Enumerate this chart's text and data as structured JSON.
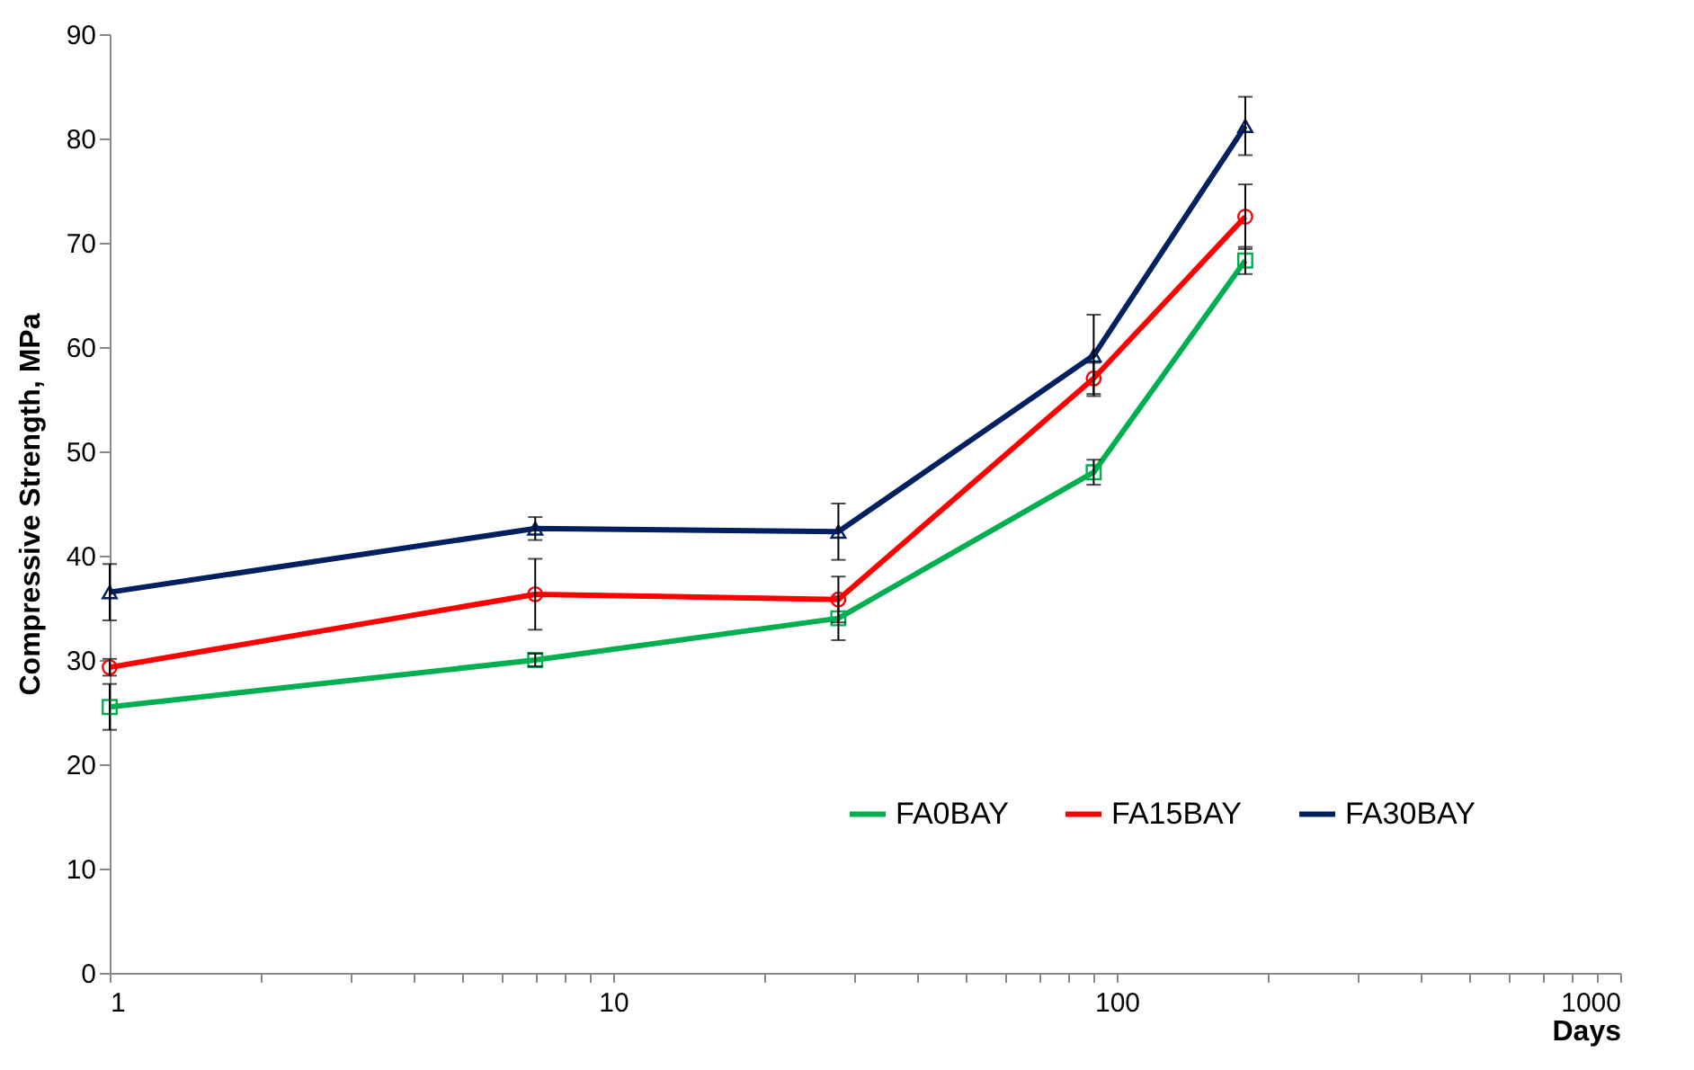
{
  "chart_data": {
    "type": "line",
    "xlabel": "Days",
    "ylabel": "Compressive Strength, MPa",
    "x": [
      1,
      7,
      28,
      90,
      180
    ],
    "series": [
      {
        "name": "FA0BAY",
        "color": "#00b050",
        "marker": "square",
        "values": [
          25.5,
          30,
          34,
          48,
          68.3
        ],
        "errors": [
          2.2,
          0.6,
          2.1,
          1.2,
          1.3
        ]
      },
      {
        "name": "FA15BAY",
        "color": "#ff0000",
        "marker": "circle",
        "values": [
          29.3,
          36.3,
          35.8,
          57,
          72.5
        ],
        "errors": [
          0.8,
          3.4,
          2.2,
          1.5,
          3.1
        ]
      },
      {
        "name": "FA30BAY",
        "color": "#002060",
        "marker": "triangle",
        "values": [
          36.5,
          42.6,
          42.3,
          59.2,
          81.2
        ],
        "errors": [
          2.7,
          1.1,
          2.7,
          3.9,
          2.8
        ]
      }
    ],
    "log": "x",
    "xlim": [
      1,
      1000
    ],
    "xticks": [
      1,
      {
        "value": 2,
        "label": null
      },
      {
        "value": 3,
        "label": null
      },
      {
        "value": 4,
        "label": null
      },
      {
        "value": 5,
        "label": null
      },
      {
        "value": 6,
        "label": null
      },
      {
        "value": 7,
        "label": null
      },
      {
        "value": 8,
        "label": null
      },
      {
        "value": 9,
        "label": null
      },
      10,
      {
        "value": 20,
        "label": null
      },
      {
        "value": 30,
        "label": null
      },
      {
        "value": 40,
        "label": null
      },
      {
        "value": 50,
        "label": null
      },
      {
        "value": 60,
        "label": null
      },
      {
        "value": 70,
        "label": null
      },
      {
        "value": 80,
        "label": null
      },
      {
        "value": 90,
        "label": null
      },
      100,
      {
        "value": 200,
        "label": null
      },
      {
        "value": 300,
        "label": null
      },
      {
        "value": 400,
        "label": null
      },
      {
        "value": 500,
        "label": null
      },
      {
        "value": 600,
        "label": null
      },
      {
        "value": 700,
        "label": null
      },
      {
        "value": 800,
        "label": null
      },
      {
        "value": 900,
        "label": null
      },
      1000
    ],
    "ylim": [
      0,
      90
    ],
    "yticks": [
      0,
      10,
      20,
      30,
      40,
      50,
      60,
      70,
      80,
      90
    ],
    "grid": false,
    "legend": "bottom right"
  }
}
